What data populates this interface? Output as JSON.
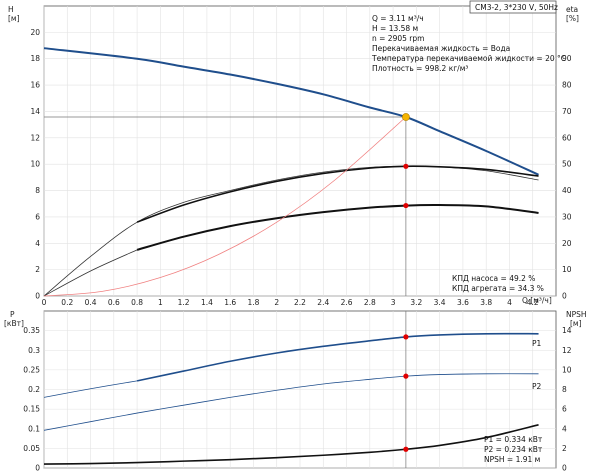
{
  "header": {
    "model": "CM3-2, 3*230 V, 50Hz"
  },
  "info": {
    "lines": [
      "Q = 3.11 м³/ч",
      "H = 13.58 м",
      "n = 2905 rpm",
      "Перекачиваемая жидкость = Вода",
      "Температура перекачиваемой жидкости = 20 °C",
      "Плотность = 998.2 кг/м³"
    ],
    "efficiency": [
      "КПД насоса = 49.2 %",
      "КПД агрегата = 34.3 %"
    ],
    "power": [
      "P1 = 0.334 кВт",
      "P2 = 0.234 кВт",
      "NPSH = 1.91 м"
    ]
  },
  "chart_data": [
    {
      "type": "line",
      "title": "",
      "axes": {
        "left_label": [
          "H",
          "[м]"
        ],
        "right_label": [
          "eta",
          "[%]"
        ],
        "x_label": "Q [м³/ч]",
        "x_range": [
          0,
          4.4
        ],
        "x_ticks": [
          0,
          0.2,
          0.4,
          0.6,
          0.8,
          1.0,
          1.2,
          1.4,
          1.6,
          1.8,
          2.0,
          2.2,
          2.4,
          2.6,
          2.8,
          3.0,
          3.2,
          3.4,
          3.6,
          3.8,
          4.0,
          4.2
        ],
        "y_range": [
          0,
          22
        ],
        "y_ticks": [
          0,
          2,
          4,
          6,
          8,
          10,
          12,
          14,
          16,
          18,
          20
        ],
        "y2_range": [
          0,
          110
        ],
        "y2_ticks": [
          0,
          10,
          20,
          30,
          40,
          50,
          60,
          70,
          80,
          90
        ]
      },
      "series": [
        {
          "id": "head",
          "color": "#1f4e8c",
          "width": 2,
          "x": [
            0,
            0.8,
            1.2,
            1.6,
            2.0,
            2.4,
            2.8,
            3.11,
            3.4,
            3.8,
            4.25
          ],
          "y": [
            18.8,
            18.0,
            17.4,
            16.8,
            16.1,
            15.3,
            14.3,
            13.58,
            12.5,
            11.0,
            9.2
          ]
        },
        {
          "id": "eta-pump-thin",
          "color": "#333333",
          "width": 0.8,
          "x": [
            0,
            0.4,
            0.8,
            1.2,
            1.6,
            2.0,
            2.4,
            2.8,
            3.11,
            3.4,
            3.8,
            4.25
          ],
          "y2": [
            0,
            15,
            28,
            35.5,
            40,
            44,
            47,
            48.8,
            49.2,
            49,
            47.5,
            44
          ]
        },
        {
          "id": "eta-pump-thick",
          "color": "#111111",
          "width": 1.6,
          "x": [
            0.8,
            1.2,
            1.6,
            2.0,
            2.4,
            2.8,
            3.11,
            3.4,
            3.8,
            4.25
          ],
          "y2": [
            28,
            34.5,
            39.5,
            43.5,
            46.5,
            48.5,
            49.2,
            49,
            48,
            45.5
          ]
        },
        {
          "id": "eta-unit-thin",
          "color": "#333333",
          "width": 0.8,
          "x": [
            0,
            0.4,
            0.8
          ],
          "y2": [
            0,
            9.5,
            17.5
          ]
        },
        {
          "id": "eta-unit-thick",
          "color": "#111111",
          "width": 2,
          "x": [
            0.8,
            1.2,
            1.6,
            2.0,
            2.4,
            2.8,
            3.11,
            3.4,
            3.8,
            4.25
          ],
          "y2": [
            17.5,
            22.5,
            26.5,
            29.5,
            31.8,
            33.5,
            34.3,
            34.5,
            34,
            31.5
          ]
        },
        {
          "id": "system-curve",
          "color": "#f08080",
          "width": 0.8,
          "x": [
            0,
            0.5,
            1.0,
            1.5,
            2.0,
            2.5,
            3.11
          ],
          "y": [
            0,
            0.35,
            1.4,
            3.15,
            5.6,
            8.8,
            13.58
          ]
        }
      ],
      "duty_point": {
        "x": 3.11,
        "y": 13.58,
        "color": "#f5b400"
      },
      "markers": [
        {
          "x": 3.11,
          "y2": 49.2
        },
        {
          "x": 3.11,
          "y2": 34.3
        }
      ]
    },
    {
      "type": "line",
      "title": "",
      "axes": {
        "left_label": [
          "P",
          "[кВт]"
        ],
        "right_label": [
          "NPSH",
          "[м]"
        ],
        "x_range": [
          0,
          4.4
        ],
        "y_range": [
          0,
          0.4
        ],
        "y_ticks": [
          0,
          0.05,
          0.1,
          0.15,
          0.2,
          0.25,
          0.3,
          0.35
        ],
        "y2_range": [
          0,
          16
        ],
        "y2_ticks": [
          0,
          2,
          4,
          6,
          8,
          10,
          12,
          14
        ]
      },
      "series": [
        {
          "id": "P1-thin",
          "name": "P1",
          "label": "P1",
          "color": "#1f4e8c",
          "width": 0.8,
          "x": [
            0,
            0.4,
            0.8
          ],
          "y": [
            0.18,
            0.202,
            0.222
          ]
        },
        {
          "id": "P1-thick",
          "color": "#1f4e8c",
          "width": 1.6,
          "x": [
            0.8,
            1.2,
            1.6,
            2.0,
            2.4,
            2.8,
            3.11,
            3.4,
            3.8,
            4.25
          ],
          "y": [
            0.222,
            0.247,
            0.272,
            0.293,
            0.31,
            0.324,
            0.334,
            0.339,
            0.342,
            0.342
          ]
        },
        {
          "id": "P2-thin",
          "name": "P2",
          "label": "P2",
          "color": "#1f4e8c",
          "width": 0.8,
          "x": [
            0,
            0.4,
            0.8,
            1.2,
            1.6,
            2.0,
            2.4,
            2.8,
            3.11,
            3.4,
            3.8,
            4.25
          ],
          "y": [
            0.096,
            0.118,
            0.14,
            0.16,
            0.18,
            0.198,
            0.214,
            0.226,
            0.234,
            0.238,
            0.24,
            0.24
          ]
        },
        {
          "id": "npsh",
          "color": "#111111",
          "width": 1.6,
          "x": [
            0,
            0.4,
            0.8,
            1.2,
            1.6,
            2.0,
            2.4,
            2.8,
            3.11,
            3.4,
            3.8,
            4.25
          ],
          "y2": [
            0.4,
            0.45,
            0.55,
            0.7,
            0.85,
            1.05,
            1.3,
            1.6,
            1.91,
            2.3,
            3.1,
            4.4
          ]
        }
      ],
      "markers": [
        {
          "x": 3.11,
          "y": 0.334
        },
        {
          "x": 3.11,
          "y": 0.234
        },
        {
          "x": 3.11,
          "y2": 1.91
        }
      ]
    }
  ]
}
